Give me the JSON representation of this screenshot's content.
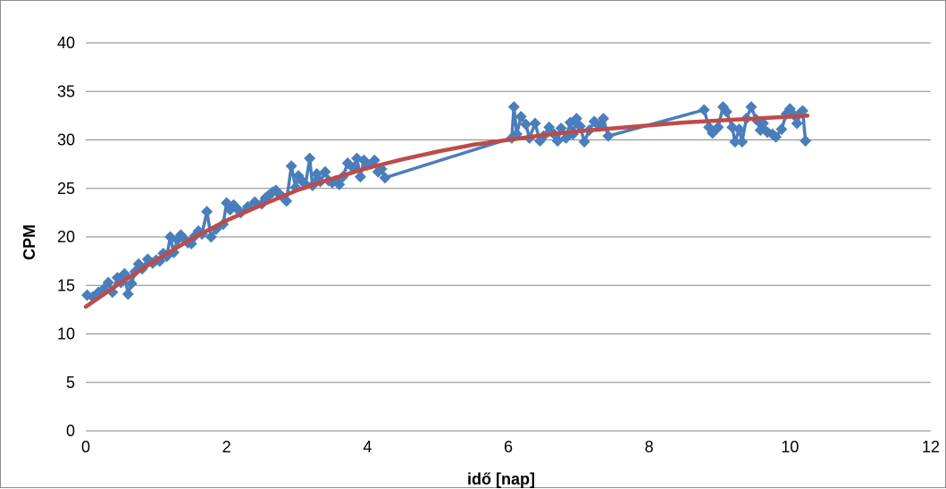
{
  "chart_data": {
    "type": "scatter",
    "title": "",
    "xlabel": "idő [nap]",
    "ylabel": "CPM",
    "xlim": [
      0,
      12
    ],
    "ylim": [
      0,
      40
    ],
    "x_ticks": [
      "0",
      "2",
      "4",
      "6",
      "8",
      "10",
      "12"
    ],
    "y_ticks": [
      "0",
      "5",
      "10",
      "15",
      "20",
      "25",
      "30",
      "35",
      "40"
    ],
    "grid": "horizontal",
    "legend": "none",
    "colors": {
      "measured": "#4a7ebb",
      "fit": "#be4b48",
      "grid": "#868686"
    },
    "series": [
      {
        "marker": "diamond",
        "line": true,
        "points": [
          [
            0.02,
            14.0
          ],
          [
            0.1,
            13.8
          ],
          [
            0.18,
            14.3
          ],
          [
            0.25,
            14.6
          ],
          [
            0.32,
            15.3
          ],
          [
            0.38,
            14.3
          ],
          [
            0.45,
            15.8
          ],
          [
            0.5,
            15.3
          ],
          [
            0.55,
            16.2
          ],
          [
            0.6,
            14.1
          ],
          [
            0.65,
            15.2
          ],
          [
            0.7,
            16.4
          ],
          [
            0.75,
            17.2
          ],
          [
            0.8,
            16.7
          ],
          [
            0.88,
            17.7
          ],
          [
            0.95,
            17.3
          ],
          [
            1.0,
            17.6
          ],
          [
            1.05,
            17.5
          ],
          [
            1.1,
            18.3
          ],
          [
            1.15,
            18.0
          ],
          [
            1.2,
            20.0
          ],
          [
            1.25,
            18.4
          ],
          [
            1.3,
            19.7
          ],
          [
            1.35,
            20.2
          ],
          [
            1.4,
            19.8
          ],
          [
            1.45,
            19.4
          ],
          [
            1.5,
            19.3
          ],
          [
            1.55,
            20.1
          ],
          [
            1.6,
            20.6
          ],
          [
            1.65,
            20.3
          ],
          [
            1.72,
            22.6
          ],
          [
            1.78,
            20.0
          ],
          [
            1.85,
            20.8
          ],
          [
            1.95,
            21.3
          ],
          [
            2.0,
            23.5
          ],
          [
            2.05,
            22.8
          ],
          [
            2.1,
            23.3
          ],
          [
            2.15,
            22.9
          ],
          [
            2.2,
            22.5
          ],
          [
            2.3,
            23.1
          ],
          [
            2.4,
            23.6
          ],
          [
            2.5,
            23.4
          ],
          [
            2.55,
            24.0
          ],
          [
            2.6,
            24.3
          ],
          [
            2.65,
            24.6
          ],
          [
            2.7,
            24.8
          ],
          [
            2.75,
            24.4
          ],
          [
            2.8,
            24.1
          ],
          [
            2.85,
            23.7
          ],
          [
            2.92,
            27.3
          ],
          [
            2.98,
            25.1
          ],
          [
            3.02,
            26.3
          ],
          [
            3.08,
            25.7
          ],
          [
            3.12,
            25.4
          ],
          [
            3.18,
            28.1
          ],
          [
            3.22,
            25.3
          ],
          [
            3.28,
            26.5
          ],
          [
            3.33,
            25.7
          ],
          [
            3.4,
            26.7
          ],
          [
            3.45,
            25.8
          ],
          [
            3.5,
            25.6
          ],
          [
            3.55,
            25.8
          ],
          [
            3.6,
            25.4
          ],
          [
            3.65,
            26.2
          ],
          [
            3.72,
            27.6
          ],
          [
            3.8,
            27.1
          ],
          [
            3.85,
            28.1
          ],
          [
            3.9,
            26.2
          ],
          [
            3.95,
            27.9
          ],
          [
            4.0,
            27.4
          ],
          [
            4.05,
            27.5
          ],
          [
            4.1,
            27.9
          ],
          [
            4.15,
            26.7
          ],
          [
            4.2,
            27.0
          ],
          [
            4.25,
            26.1
          ],
          [
            6.05,
            30.2
          ],
          [
            6.08,
            33.4
          ],
          [
            6.12,
            30.6
          ],
          [
            6.18,
            32.4
          ],
          [
            6.25,
            31.6
          ],
          [
            6.3,
            30.2
          ],
          [
            6.38,
            31.7
          ],
          [
            6.45,
            29.9
          ],
          [
            6.5,
            30.4
          ],
          [
            6.58,
            31.3
          ],
          [
            6.65,
            30.6
          ],
          [
            6.7,
            29.9
          ],
          [
            6.75,
            31.2
          ],
          [
            6.82,
            30.2
          ],
          [
            6.88,
            31.8
          ],
          [
            6.92,
            30.6
          ],
          [
            6.97,
            32.2
          ],
          [
            7.02,
            31.4
          ],
          [
            7.08,
            29.8
          ],
          [
            7.15,
            31.0
          ],
          [
            7.22,
            31.9
          ],
          [
            7.3,
            31.4
          ],
          [
            7.35,
            32.2
          ],
          [
            7.42,
            30.4
          ],
          [
            8.78,
            33.1
          ],
          [
            8.85,
            31.3
          ],
          [
            8.9,
            30.7
          ],
          [
            8.98,
            31.3
          ],
          [
            9.05,
            33.4
          ],
          [
            9.1,
            32.9
          ],
          [
            9.18,
            31.3
          ],
          [
            9.22,
            29.8
          ],
          [
            9.28,
            31.1
          ],
          [
            9.32,
            29.8
          ],
          [
            9.38,
            32.2
          ],
          [
            9.45,
            33.4
          ],
          [
            9.52,
            32.1
          ],
          [
            9.58,
            31.0
          ],
          [
            9.62,
            31.7
          ],
          [
            9.68,
            30.8
          ],
          [
            9.75,
            30.6
          ],
          [
            9.8,
            30.3
          ],
          [
            9.88,
            31.1
          ],
          [
            9.95,
            32.7
          ],
          [
            10.0,
            33.2
          ],
          [
            10.05,
            32.6
          ],
          [
            10.1,
            31.7
          ],
          [
            10.15,
            32.8
          ],
          [
            10.18,
            33.0
          ],
          [
            10.22,
            29.9
          ]
        ]
      },
      {
        "marker": "none",
        "line": true,
        "smooth": true,
        "points": [
          [
            0.0,
            12.8
          ],
          [
            0.5,
            15.3
          ],
          [
            1.0,
            17.6
          ],
          [
            1.5,
            19.8
          ],
          [
            2.0,
            21.7
          ],
          [
            2.5,
            23.3
          ],
          [
            3.0,
            24.8
          ],
          [
            3.5,
            26.0
          ],
          [
            4.0,
            27.1
          ],
          [
            4.5,
            28.0
          ],
          [
            5.0,
            28.8
          ],
          [
            5.5,
            29.5
          ],
          [
            6.0,
            30.0
          ],
          [
            6.5,
            30.5
          ],
          [
            7.0,
            30.9
          ],
          [
            7.5,
            31.2
          ],
          [
            8.0,
            31.5
          ],
          [
            8.5,
            31.8
          ],
          [
            9.0,
            32.0
          ],
          [
            9.5,
            32.2
          ],
          [
            10.0,
            32.4
          ],
          [
            10.25,
            32.5
          ]
        ]
      }
    ]
  }
}
